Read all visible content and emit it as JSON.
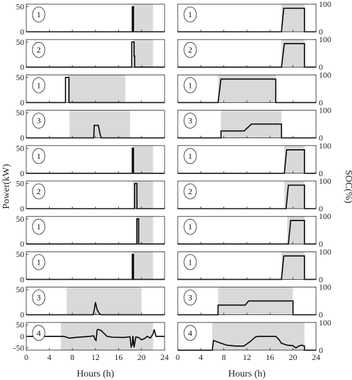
{
  "chart_data": {
    "type": "line",
    "x_label": "Hours (h)",
    "y_label_left": "Power(kW)",
    "y_label_right": "SOC(%)",
    "x_ticks": [
      "0",
      "4",
      "8",
      "12",
      "16",
      "20",
      "24"
    ],
    "xlim": [
      0,
      24
    ],
    "shade_color": "#d9d9d9",
    "line_color": "#000000",
    "rows": [
      {
        "badge": "1",
        "power_ylim": [
          0,
          55
        ],
        "power_ticks": [
          "0",
          "50"
        ],
        "shade": [
          18.5,
          22
        ],
        "power": {
          "x": [
            0,
            18.4,
            18.4,
            18.6,
            18.6,
            24
          ],
          "y": [
            0,
            0,
            50,
            50,
            0,
            0
          ]
        },
        "soc_shade": [
          18,
          22
        ],
        "soc": {
          "x": [
            0,
            18,
            18.4,
            22,
            22,
            24
          ],
          "y": [
            0,
            0,
            85,
            85,
            0,
            0
          ]
        }
      },
      {
        "badge": "2",
        "power_ylim": [
          0,
          55
        ],
        "power_ticks": [
          "0",
          "50"
        ],
        "shade": [
          18.5,
          22
        ],
        "power": {
          "x": [
            0,
            18.3,
            18.3,
            18.7,
            18.7,
            18.8,
            18.8,
            24
          ],
          "y": [
            0,
            0,
            50,
            50,
            22,
            22,
            0,
            0
          ]
        },
        "soc_shade": [
          18,
          22
        ],
        "soc": {
          "x": [
            0,
            18,
            18.5,
            22,
            22,
            24
          ],
          "y": [
            0,
            0,
            85,
            85,
            0,
            0
          ]
        }
      },
      {
        "badge": "1",
        "power_ylim": [
          0,
          55
        ],
        "power_ticks": [
          "0",
          "50"
        ],
        "shade": [
          7.2,
          17.2
        ],
        "power": {
          "x": [
            0,
            6.8,
            6.8,
            7.4,
            7.4,
            24
          ],
          "y": [
            0,
            0,
            50,
            50,
            0,
            0
          ]
        },
        "soc_shade": [
          7,
          17
        ],
        "soc": {
          "x": [
            0,
            7,
            7.5,
            17,
            17,
            24
          ],
          "y": [
            0,
            0,
            85,
            85,
            0,
            0
          ]
        }
      },
      {
        "badge": "3",
        "power_ylim": [
          0,
          55
        ],
        "power_ticks": [
          "0",
          "50"
        ],
        "shade": [
          7.5,
          18
        ],
        "power": {
          "x": [
            0,
            11.7,
            11.8,
            12.5,
            12.8,
            13,
            24
          ],
          "y": [
            0,
            0,
            25,
            25,
            8,
            0,
            0
          ]
        },
        "soc_shade": [
          7.5,
          18
        ],
        "soc": {
          "x": [
            0,
            7.5,
            7.5,
            11.5,
            12.8,
            18,
            18,
            24
          ],
          "y": [
            0,
            0,
            25,
            25,
            50,
            50,
            0,
            0
          ]
        }
      },
      {
        "badge": "1",
        "power_ylim": [
          0,
          55
        ],
        "power_ticks": [
          "0",
          "50"
        ],
        "shade": [
          18.5,
          22
        ],
        "power": {
          "x": [
            0,
            18.4,
            18.4,
            18.6,
            18.6,
            24
          ],
          "y": [
            0,
            0,
            50,
            50,
            0,
            0
          ]
        },
        "soc_shade": [
          18.5,
          22
        ],
        "soc": {
          "x": [
            0,
            18.5,
            18.9,
            22,
            22,
            24
          ],
          "y": [
            0,
            0,
            85,
            85,
            0,
            0
          ]
        }
      },
      {
        "badge": "2",
        "power_ylim": [
          0,
          55
        ],
        "power_ticks": [
          "0",
          "50"
        ],
        "shade": [
          18.5,
          22
        ],
        "power": {
          "x": [
            0,
            18.8,
            18.8,
            19.2,
            19.2,
            24
          ],
          "y": [
            0,
            0,
            50,
            50,
            0,
            0
          ]
        },
        "soc_shade": [
          18.5,
          22
        ],
        "soc": {
          "x": [
            0,
            18.8,
            19.2,
            22,
            22,
            24
          ],
          "y": [
            0,
            0,
            85,
            85,
            0,
            0
          ]
        }
      },
      {
        "badge": "1",
        "power_ylim": [
          0,
          55
        ],
        "power_ticks": [
          "0",
          "50"
        ],
        "shade": [
          19,
          22
        ],
        "power": {
          "x": [
            0,
            19.2,
            19.2,
            19.5,
            19.5,
            24
          ],
          "y": [
            0,
            0,
            50,
            50,
            0,
            0
          ]
        },
        "soc_shade": [
          19,
          22
        ],
        "soc": {
          "x": [
            0,
            19.2,
            19.6,
            22,
            22,
            24
          ],
          "y": [
            0,
            0,
            85,
            85,
            0,
            0
          ]
        }
      },
      {
        "badge": "1",
        "power_ylim": [
          0,
          55
        ],
        "power_ticks": [
          "0",
          "50"
        ],
        "shade": [
          18.5,
          22
        ],
        "power": {
          "x": [
            0,
            18.4,
            18.4,
            18.6,
            18.6,
            24
          ],
          "y": [
            0,
            0,
            50,
            50,
            0,
            0
          ]
        },
        "soc_shade": [
          18,
          22
        ],
        "soc": {
          "x": [
            0,
            18,
            18.4,
            22,
            22,
            24
          ],
          "y": [
            0,
            0,
            85,
            85,
            0,
            0
          ]
        }
      },
      {
        "badge": "3",
        "power_ylim": [
          0,
          55
        ],
        "power_ticks": [
          "0",
          "50"
        ],
        "shade": [
          7,
          20
        ],
        "power": {
          "x": [
            0,
            11.6,
            11.8,
            12,
            12.3,
            12.7,
            13,
            24
          ],
          "y": [
            0,
            0,
            10,
            25,
            10,
            2,
            0,
            0
          ]
        },
        "soc_shade": [
          7,
          20
        ],
        "soc": {
          "x": [
            0,
            7,
            7,
            11.7,
            12.3,
            20,
            20,
            24
          ],
          "y": [
            0,
            0,
            35,
            35,
            50,
            50,
            0,
            0
          ]
        }
      },
      {
        "badge": "4",
        "power_ylim": [
          -60,
          60
        ],
        "power_ticks": [
          "-50",
          "0",
          "50"
        ],
        "shade": [
          6,
          22
        ],
        "power": {
          "x": [
            0,
            6.5,
            7.5,
            8.5,
            10,
            11,
            11.7,
            11.9,
            12.1,
            12.3,
            12.5,
            13,
            14,
            15,
            17,
            18,
            18.2,
            18.4,
            18.5,
            18.7,
            19,
            19.5,
            20,
            20.5,
            21,
            21.5,
            22,
            22.2,
            22.5,
            24
          ],
          "y": [
            0,
            0,
            -8,
            -5,
            -2,
            0,
            2,
            -12,
            -18,
            28,
            30,
            25,
            0,
            -4,
            -5,
            -2,
            -45,
            -35,
            2,
            -48,
            -3,
            -5,
            -15,
            -10,
            0,
            -8,
            10,
            30,
            0,
            0
          ]
        },
        "soc_shade": [
          6,
          22
        ],
        "soc": {
          "x": [
            0,
            6,
            6.2,
            7.5,
            8.5,
            10,
            11.5,
            12.5,
            13.5,
            14,
            17,
            17.5,
            18,
            19,
            20,
            20.5,
            21,
            21.5,
            22,
            22,
            24
          ],
          "y": [
            0,
            0,
            35,
            25,
            18,
            15,
            15,
            30,
            48,
            50,
            50,
            40,
            25,
            18,
            16,
            8,
            15,
            18,
            15,
            0,
            0
          ]
        }
      }
    ],
    "soc_ylim": [
      0,
      100
    ],
    "soc_ticks": [
      "0",
      "100"
    ]
  }
}
